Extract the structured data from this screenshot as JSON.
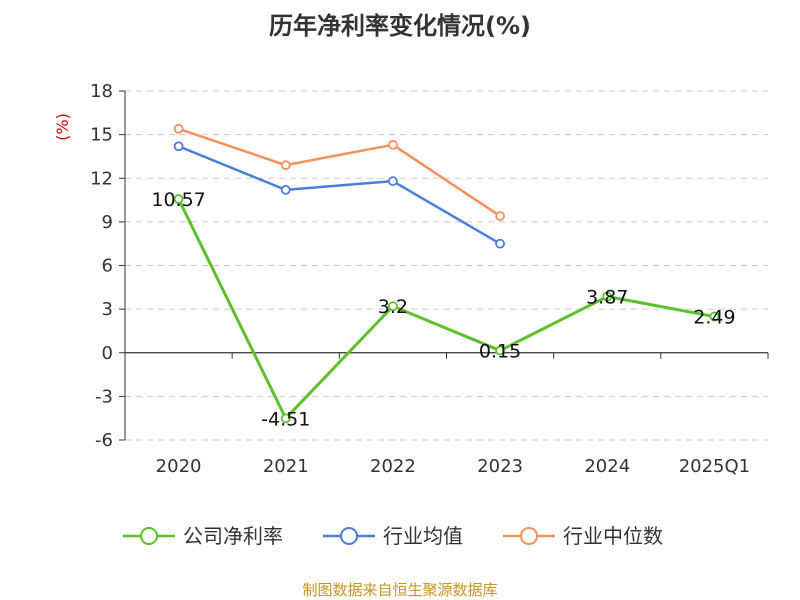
{
  "title": "历年净利率变化情况(%)",
  "footer": "制图数据来自恒生聚源数据库",
  "colors": {
    "company": "#5cc12c",
    "industry_avg": "#4a7fd9",
    "industry_median": "#f5915a",
    "grid": "#cccccc",
    "axis": "#333333",
    "unit": "#cc0000",
    "footer": "#c8951e"
  },
  "chart_data": {
    "type": "line",
    "title": "历年净利率变化情况(%)",
    "ylabel": "(%)",
    "xlabel": "",
    "categories": [
      "2020",
      "2021",
      "2022",
      "2023",
      "2024",
      "2025Q1"
    ],
    "ylim": [
      -6,
      18
    ],
    "yticks": [
      -6,
      -3,
      0,
      3,
      6,
      9,
      12,
      15,
      18
    ],
    "grid": true,
    "legend_position": "bottom",
    "series": [
      {
        "name": "公司净利率",
        "color": "#5cc12c",
        "values": [
          10.57,
          -4.51,
          3.2,
          0.15,
          3.87,
          2.49
        ],
        "labels": [
          "10.57",
          "-4.51",
          "3.2",
          "0.15",
          "3.87",
          "2.49"
        ]
      },
      {
        "name": "行业均值",
        "color": "#4a7fd9",
        "values": [
          14.2,
          11.2,
          11.8,
          7.5,
          null,
          null
        ]
      },
      {
        "name": "行业中位数",
        "color": "#f5915a",
        "values": [
          15.4,
          12.9,
          14.3,
          9.4,
          null,
          null
        ]
      }
    ]
  }
}
